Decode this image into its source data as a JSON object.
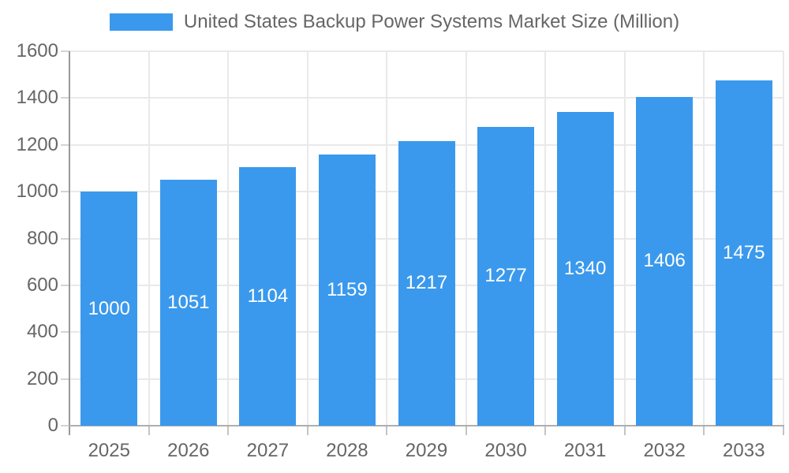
{
  "legend": {
    "label": "United States Backup Power Systems Market Size (Million)"
  },
  "colors": {
    "bar": "#3a99ec",
    "grid": "#e9e9e9",
    "axis_y_line": "#999999",
    "axis_x_line": "#aeaeae",
    "tick_y": "#d4d4d4",
    "tick_x": "#c4c4c4",
    "text": "#666666",
    "bar_label": "#ffffff",
    "background": "#ffffff"
  },
  "chart_data": {
    "type": "bar",
    "title": "United States Backup Power Systems Market Size (Million)",
    "categories": [
      "2025",
      "2026",
      "2027",
      "2028",
      "2029",
      "2030",
      "2031",
      "2032",
      "2033"
    ],
    "series": [
      {
        "name": "United States Backup Power Systems Market Size (Million)",
        "values": [
          1000,
          1051,
          1104,
          1159,
          1217,
          1277,
          1340,
          1406,
          1475
        ]
      }
    ],
    "value_labels": [
      "1000",
      "1051",
      "1104",
      "1159",
      "1217",
      "1277",
      "1340",
      "1406",
      "1475"
    ],
    "value_label_position": "inside-center",
    "xlabel": "",
    "ylabel": "",
    "ylim": [
      0,
      1600
    ],
    "yticks": [
      0,
      200,
      400,
      600,
      800,
      1000,
      1200,
      1400,
      1600
    ],
    "grid": "on",
    "legend_position": "top-center"
  }
}
